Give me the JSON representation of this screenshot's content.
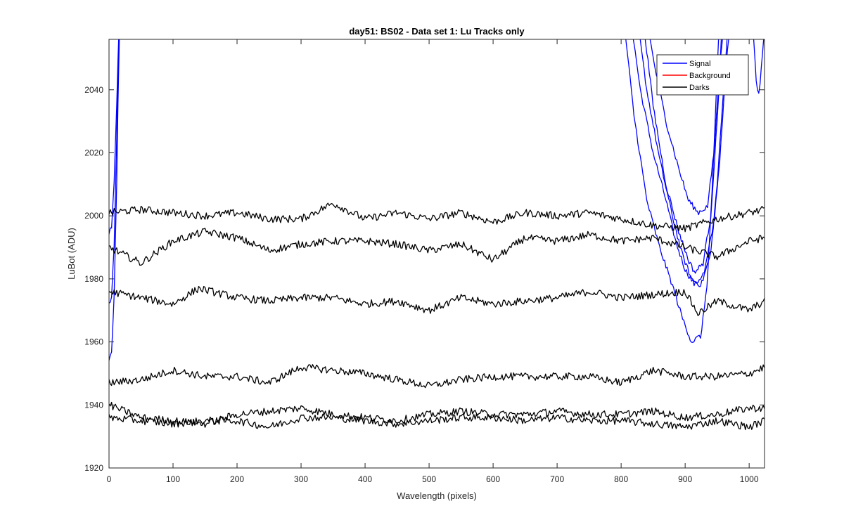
{
  "chart_data": {
    "type": "line",
    "title": "day51: BS02 - Data set 1: Lu Tracks only",
    "xlabel": "Wavelength (pixels)",
    "ylabel": "LuBot (ADU)",
    "xlim": [
      0,
      1024
    ],
    "ylim": [
      1920,
      2056
    ],
    "xticks": [
      0,
      100,
      200,
      300,
      400,
      500,
      600,
      700,
      800,
      900,
      1000
    ],
    "yticks": [
      1920,
      1940,
      1960,
      1980,
      2000,
      2020,
      2040
    ],
    "grid": false,
    "legend": {
      "position": "top-right",
      "entries": [
        {
          "label": "Signal",
          "color": "#0000ff"
        },
        {
          "label": "Background",
          "color": "#ff0000"
        },
        {
          "label": "Darks",
          "color": "#000000"
        }
      ]
    },
    "series": [
      {
        "group": "Signal",
        "color": "#0000ff",
        "x": [
          0,
          4,
          8,
          12,
          14,
          16,
          18,
          810,
          830,
          850,
          870,
          885,
          900,
          915,
          930,
          945,
          955,
          965,
          975
        ],
        "y": [
          1972,
          1974,
          1990,
          2025,
          2045,
          2060,
          2070,
          2070,
          2040,
          2020,
          2005,
          1992,
          1983,
          1978,
          1982,
          1998,
          2020,
          2050,
          2070
        ]
      },
      {
        "group": "Signal",
        "color": "#0000ff",
        "x": [
          0,
          4,
          8,
          12,
          14,
          16,
          18,
          820,
          840,
          860,
          880,
          895,
          910,
          925,
          940,
          950,
          960,
          970
        ],
        "y": [
          1955,
          1957,
          1975,
          2010,
          2035,
          2055,
          2070,
          2070,
          2040,
          2018,
          2000,
          1988,
          1980,
          1978,
          1988,
          2010,
          2040,
          2070
        ]
      },
      {
        "group": "Signal",
        "color": "#0000ff",
        "x": [
          0,
          4,
          8,
          12,
          14,
          16,
          18,
          800,
          820,
          840,
          860,
          880,
          895,
          910,
          925,
          935,
          945,
          955
        ],
        "y": [
          1995,
          1997,
          2010,
          2035,
          2050,
          2062,
          2070,
          2070,
          2032,
          2005,
          1990,
          1978,
          1968,
          1960,
          1962,
          1980,
          2020,
          2070
        ]
      },
      {
        "group": "Signal",
        "color": "#0000ff",
        "x": [
          835,
          850,
          870,
          890,
          905,
          920,
          935,
          945,
          955,
          965
        ],
        "y": [
          2070,
          2050,
          2030,
          2015,
          2005,
          2001,
          2003,
          2020,
          2050,
          2070
        ]
      },
      {
        "group": "Signal",
        "color": "#0000ff",
        "x": [
          830,
          850,
          870,
          890,
          905,
          915,
          928,
          940,
          950,
          960
        ],
        "y": [
          2070,
          2035,
          2010,
          1995,
          1986,
          1982,
          1985,
          2000,
          2030,
          2070
        ]
      },
      {
        "group": "Signal",
        "color": "#0000ff",
        "x": [
          1003,
          1008,
          1012,
          1016,
          1020,
          1024
        ],
        "y": [
          2070,
          2052,
          2040,
          2038,
          2050,
          2060
        ]
      },
      {
        "group": "Darks",
        "color": "#000000",
        "x": [
          0,
          50,
          100,
          150,
          200,
          250,
          300,
          350,
          400,
          450,
          500,
          550,
          600,
          650,
          700,
          750,
          800,
          850,
          900,
          950,
          1000,
          1024
        ],
        "y": [
          2001,
          2002,
          2001,
          2000,
          2001,
          1999,
          1999,
          2004,
          1999,
          2001,
          1999,
          2001,
          1998,
          2001,
          2000,
          2001,
          1999,
          1997,
          1996,
          1999,
          2001,
          2002
        ]
      },
      {
        "group": "Darks",
        "color": "#000000",
        "x": [
          0,
          50,
          100,
          150,
          200,
          250,
          300,
          350,
          400,
          450,
          500,
          550,
          600,
          650,
          700,
          750,
          800,
          850,
          900,
          950,
          1000,
          1024
        ],
        "y": [
          1990,
          1985,
          1992,
          1995,
          1993,
          1989,
          1991,
          1992,
          1992,
          1991,
          1989,
          1991,
          1986,
          1993,
          1992,
          1994,
          1992,
          1993,
          1990,
          1987,
          1992,
          1993
        ]
      },
      {
        "group": "Darks",
        "color": "#000000",
        "x": [
          0,
          50,
          100,
          140,
          200,
          250,
          300,
          350,
          400,
          450,
          500,
          550,
          600,
          650,
          700,
          750,
          800,
          850,
          900,
          920,
          950,
          1000,
          1024
        ],
        "y": [
          1976,
          1974,
          1972,
          1977,
          1974,
          1973,
          1974,
          1974,
          1972,
          1973,
          1970,
          1974,
          1972,
          1973,
          1974,
          1976,
          1974,
          1975,
          1976,
          1969,
          1973,
          1970,
          1973
        ]
      },
      {
        "group": "Darks",
        "color": "#000000",
        "x": [
          0,
          50,
          100,
          150,
          200,
          250,
          300,
          350,
          400,
          450,
          500,
          550,
          600,
          650,
          700,
          750,
          800,
          850,
          900,
          950,
          1000,
          1024
        ],
        "y": [
          1947,
          1948,
          1951,
          1949,
          1949,
          1947,
          1952,
          1951,
          1950,
          1948,
          1946,
          1948,
          1949,
          1949,
          1949,
          1949,
          1947,
          1951,
          1949,
          1949,
          1950,
          1952
        ]
      },
      {
        "group": "Darks",
        "color": "#000000",
        "x": [
          0,
          50,
          100,
          150,
          200,
          250,
          300,
          350,
          400,
          450,
          500,
          550,
          600,
          650,
          700,
          750,
          800,
          850,
          900,
          950,
          1000,
          1024
        ],
        "y": [
          1940,
          1936,
          1935,
          1934,
          1937,
          1938,
          1939,
          1937,
          1936,
          1935,
          1937,
          1938,
          1937,
          1937,
          1938,
          1937,
          1937,
          1938,
          1936,
          1937,
          1939,
          1939
        ]
      },
      {
        "group": "Darks",
        "color": "#000000",
        "x": [
          0,
          50,
          100,
          150,
          200,
          250,
          300,
          350,
          400,
          450,
          500,
          550,
          600,
          650,
          700,
          750,
          800,
          850,
          900,
          950,
          1000,
          1024
        ],
        "y": [
          1936,
          1935,
          1934,
          1935,
          1935,
          1933,
          1936,
          1936,
          1935,
          1934,
          1935,
          1936,
          1936,
          1935,
          1936,
          1935,
          1935,
          1934,
          1933,
          1935,
          1933,
          1935
        ]
      }
    ]
  }
}
